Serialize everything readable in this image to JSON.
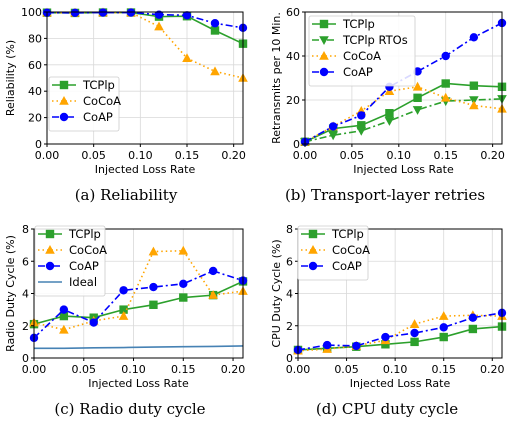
{
  "chart_data": [
    {
      "type": "line",
      "caption": "(a) Reliability",
      "xlabel": "Injected Loss Rate",
      "ylabel": "Reliability (%)",
      "xlim": [
        0.0,
        0.21
      ],
      "ylim": [
        0,
        100
      ],
      "xticks": [
        "0.00",
        "0.05",
        "0.10",
        "0.15",
        "0.20"
      ],
      "yticks": [
        "0",
        "20",
        "40",
        "60",
        "80",
        "100"
      ],
      "legend_position": "bottom-left",
      "series": [
        {
          "name": "TCPlp",
          "color": "#2ca02c",
          "marker": "square",
          "dash": "solid",
          "x": [
            0.0,
            0.03,
            0.06,
            0.09,
            0.12,
            0.15,
            0.18,
            0.21
          ],
          "values": [
            99.5,
            99.3,
            99.6,
            99.6,
            96.5,
            96.8,
            86,
            76
          ]
        },
        {
          "name": "CoCoA",
          "color": "#ffa500",
          "marker": "triangle-up",
          "dash": "dotted",
          "x": [
            0.0,
            0.03,
            0.06,
            0.09,
            0.12,
            0.15,
            0.18,
            0.21
          ],
          "values": [
            99.5,
            99.4,
            99.6,
            99.5,
            89,
            65,
            55,
            50
          ]
        },
        {
          "name": "CoAP",
          "color": "#0000ff",
          "marker": "circle",
          "dash": "dashdot",
          "x": [
            0.0,
            0.03,
            0.06,
            0.09,
            0.12,
            0.15,
            0.18,
            0.21
          ],
          "values": [
            99.5,
            99.4,
            99.6,
            99.6,
            98,
            97.5,
            91.5,
            88
          ]
        }
      ]
    },
    {
      "type": "line",
      "caption": "(b) Transport-layer retries",
      "xlabel": "Injected Loss Rate",
      "ylabel": "Retransmits per 10 Min.",
      "xlim": [
        0.0,
        0.21
      ],
      "ylim": [
        0,
        60
      ],
      "xticks": [
        "0.00",
        "0.05",
        "0.10",
        "0.15",
        "0.20"
      ],
      "yticks": [
        "0",
        "20",
        "40",
        "60"
      ],
      "legend_position": "top-left",
      "series": [
        {
          "name": "TCPlp",
          "color": "#2ca02c",
          "marker": "square",
          "dash": "solid",
          "x": [
            0.0,
            0.03,
            0.06,
            0.09,
            0.12,
            0.15,
            0.18,
            0.21
          ],
          "values": [
            1,
            7,
            8.5,
            14,
            21,
            27.5,
            26.5,
            26
          ]
        },
        {
          "name": "TCPlp RTOs",
          "color": "#2ca02c",
          "marker": "triangle-down",
          "dash": "dashdot",
          "x": [
            0.0,
            0.03,
            0.06,
            0.09,
            0.12,
            0.15,
            0.18,
            0.21
          ],
          "values": [
            1,
            4,
            6,
            10.5,
            15.5,
            19.5,
            20,
            20.5
          ]
        },
        {
          "name": "CoCoA",
          "color": "#ffa500",
          "marker": "triangle-up",
          "dash": "dotted",
          "x": [
            0.0,
            0.03,
            0.06,
            0.09,
            0.12,
            0.15,
            0.18,
            0.21
          ],
          "values": [
            1,
            8,
            15,
            24,
            26,
            21,
            17.5,
            16
          ]
        },
        {
          "name": "CoAP",
          "color": "#0000ff",
          "marker": "circle",
          "dash": "dashdot",
          "x": [
            0.0,
            0.03,
            0.06,
            0.09,
            0.12,
            0.15,
            0.18,
            0.21
          ],
          "values": [
            1,
            8,
            13,
            26,
            33,
            40,
            48.5,
            55
          ]
        }
      ]
    },
    {
      "type": "line",
      "caption": "(c) Radio duty cycle",
      "xlabel": "Injected Loss Rate",
      "ylabel": "Radio Duty Cycle (%)",
      "xlim": [
        0.0,
        0.21
      ],
      "ylim": [
        0,
        8
      ],
      "xticks": [
        "0.00",
        "0.05",
        "0.10",
        "0.15",
        "0.20"
      ],
      "yticks": [
        "0",
        "2",
        "4",
        "6",
        "8"
      ],
      "legend_position": "top-left",
      "series": [
        {
          "name": "TCPlp",
          "color": "#2ca02c",
          "marker": "square",
          "dash": "solid",
          "x": [
            0.0,
            0.03,
            0.06,
            0.09,
            0.12,
            0.15,
            0.18,
            0.21
          ],
          "values": [
            2.1,
            2.6,
            2.5,
            3.0,
            3.3,
            3.75,
            3.9,
            4.75
          ]
        },
        {
          "name": "CoCoA",
          "color": "#ffa500",
          "marker": "triangle-up",
          "dash": "dotted",
          "x": [
            0.0,
            0.03,
            0.06,
            0.09,
            0.12,
            0.15,
            0.18,
            0.21
          ],
          "values": [
            2.2,
            1.75,
            2.3,
            2.6,
            6.6,
            6.65,
            3.9,
            4.15
          ]
        },
        {
          "name": "CoAP",
          "color": "#0000ff",
          "marker": "circle",
          "dash": "dashdot",
          "x": [
            0.0,
            0.03,
            0.06,
            0.09,
            0.12,
            0.15,
            0.18,
            0.21
          ],
          "values": [
            1.25,
            3.0,
            2.2,
            4.2,
            4.4,
            4.6,
            5.4,
            4.8
          ]
        },
        {
          "name": "Ideal",
          "color": "#4682b4",
          "marker": "none",
          "dash": "solid",
          "x": [
            0.0,
            0.03,
            0.06,
            0.09,
            0.12,
            0.15,
            0.18,
            0.21
          ],
          "values": [
            0.6,
            0.6,
            0.63,
            0.65,
            0.68,
            0.7,
            0.72,
            0.75
          ]
        }
      ]
    },
    {
      "type": "line",
      "caption": "(d) CPU duty cycle",
      "xlabel": "Injected Loss Rate",
      "ylabel": "CPU Duty Cycle (%)",
      "xlim": [
        0.0,
        0.21
      ],
      "ylim": [
        0,
        8
      ],
      "xticks": [
        "0.00",
        "0.05",
        "0.10",
        "0.15",
        "0.20"
      ],
      "yticks": [
        "0",
        "2",
        "4",
        "6",
        "8"
      ],
      "legend_position": "top-left",
      "series": [
        {
          "name": "TCPlp",
          "color": "#2ca02c",
          "marker": "square",
          "dash": "solid",
          "x": [
            0.0,
            0.03,
            0.06,
            0.09,
            0.12,
            0.15,
            0.18,
            0.21
          ],
          "values": [
            0.5,
            0.6,
            0.7,
            0.85,
            1.0,
            1.3,
            1.8,
            1.95
          ]
        },
        {
          "name": "CoCoA",
          "color": "#ffa500",
          "marker": "triangle-up",
          "dash": "dotted",
          "x": [
            0.0,
            0.03,
            0.06,
            0.09,
            0.12,
            0.15,
            0.18,
            0.21
          ],
          "values": [
            0.45,
            0.55,
            0.75,
            1.1,
            2.1,
            2.6,
            2.65,
            2.6
          ]
        },
        {
          "name": "CoAP",
          "color": "#0000ff",
          "marker": "circle",
          "dash": "dashdot",
          "x": [
            0.0,
            0.03,
            0.06,
            0.09,
            0.12,
            0.15,
            0.18,
            0.21
          ],
          "values": [
            0.5,
            0.8,
            0.75,
            1.3,
            1.55,
            1.9,
            2.5,
            2.8
          ]
        }
      ]
    }
  ]
}
